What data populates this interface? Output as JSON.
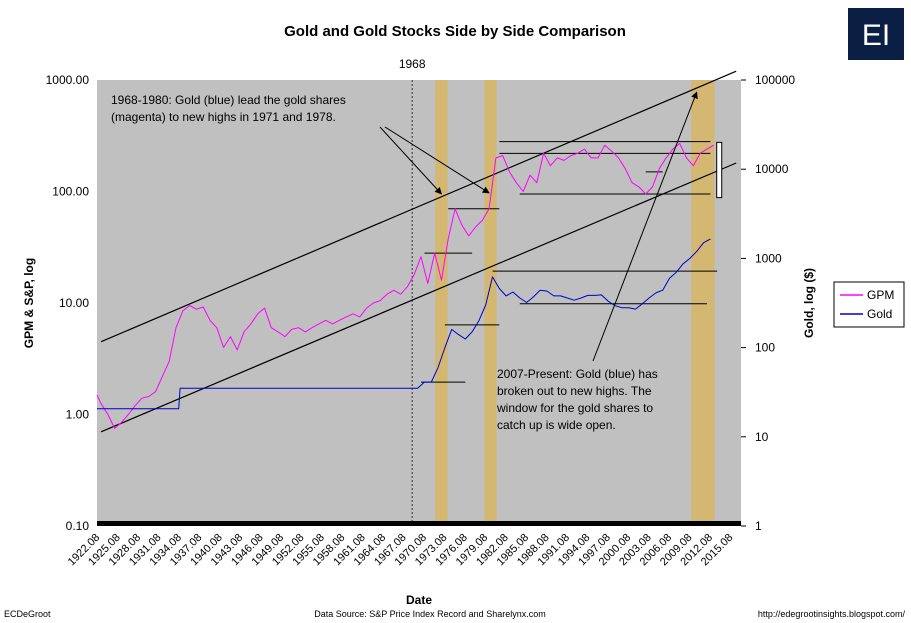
{
  "chart_data": {
    "type": "line",
    "title": "Gold and Gold Stocks Side by Side Comparison",
    "xlabel": "Date",
    "ylabel_left": "GPM & S&P, log",
    "ylabel_right": "Gold, log ($)",
    "y_left_scale": "log",
    "y_right_scale": "log",
    "ylim_left": [
      0.1,
      1000
    ],
    "ylim_right": [
      1,
      100000
    ],
    "xlim": [
      1921.9,
      2016.5
    ],
    "y_left_ticks": [
      "0.10",
      "1.00",
      "10.00",
      "100.00",
      "1000.00"
    ],
    "y_right_ticks": [
      "1",
      "10",
      "100",
      "1000",
      "10000",
      "100000"
    ],
    "x_ticks": [
      "1922.08",
      "1925.08",
      "1928.08",
      "1931.08",
      "1934.08",
      "1937.08",
      "1940.08",
      "1943.08",
      "1946.08",
      "1949.08",
      "1952.08",
      "1955.08",
      "1958.08",
      "1961.08",
      "1964.08",
      "1967.08",
      "1970.08",
      "1973.08",
      "1976.08",
      "1979.08",
      "1982.08",
      "1985.08",
      "1988.08",
      "1991.08",
      "1994.08",
      "1997.08",
      "2000.08",
      "2003.08",
      "2006.08",
      "2009.08",
      "2012.08",
      "2015.08"
    ],
    "grid": false,
    "legend_position": "right",
    "legend": [
      {
        "name": "GPM",
        "color": "#ff00ff"
      },
      {
        "name": "Gold",
        "color": "#0000cc"
      }
    ],
    "marker_line": {
      "x": 1968.2,
      "label": "1968"
    },
    "highlight_bands": [
      [
        1971.6,
        1973.4
      ],
      [
        1978.8,
        1980.6
      ],
      [
        2009.2,
        2012.6
      ]
    ],
    "series": [
      {
        "name": "GPM",
        "axis": "left",
        "color": "#ff00ff",
        "x": [
          1921.9,
          1922.5,
          1923.5,
          1924.5,
          1925.5,
          1926.5,
          1927.5,
          1928.5,
          1929.5,
          1930.5,
          1931.5,
          1932.5,
          1933.5,
          1934.5,
          1935.5,
          1936.5,
          1937.5,
          1938.5,
          1939.5,
          1940.5,
          1941.5,
          1942.5,
          1943.5,
          1944.5,
          1945.5,
          1946.5,
          1947.5,
          1948.5,
          1949.5,
          1950.5,
          1951.5,
          1952.5,
          1953.5,
          1954.5,
          1955.5,
          1956.5,
          1957.5,
          1958.5,
          1959.5,
          1960.5,
          1961.5,
          1962.5,
          1963.5,
          1964.5,
          1965.5,
          1966.5,
          1967.5,
          1968.5,
          1969.5,
          1970.5,
          1971.5,
          1972.5,
          1973.5,
          1974.5,
          1975.5,
          1976.5,
          1977.5,
          1978.5,
          1979.5,
          1980.5,
          1981.5,
          1982.5,
          1983.5,
          1984.5,
          1985.5,
          1986.5,
          1987.5,
          1988.5,
          1989.5,
          1990.5,
          1991.5,
          1992.5,
          1993.5,
          1994.5,
          1995.5,
          1996.5,
          1997.5,
          1998.5,
          1999.5,
          2000.5,
          2001.5,
          2002.5,
          2003.5,
          2004.5,
          2005.5,
          2006.5,
          2007.5,
          2008.5,
          2009.5,
          2010.5,
          2011.5,
          2012.5
        ],
        "values": [
          1.5,
          1.25,
          1.0,
          0.75,
          0.85,
          1.0,
          1.2,
          1.4,
          1.45,
          1.6,
          2.2,
          3.0,
          6.0,
          8.5,
          9.5,
          8.8,
          9.2,
          7.0,
          6.0,
          4.0,
          5.0,
          3.8,
          5.5,
          6.5,
          8.0,
          9.0,
          6.0,
          5.5,
          5.0,
          5.8,
          6.0,
          5.5,
          6.0,
          6.5,
          7.0,
          6.5,
          7.0,
          7.5,
          8.0,
          7.5,
          9.0,
          10.0,
          10.5,
          12.0,
          13.0,
          12.0,
          14.0,
          18.0,
          26.0,
          15.0,
          28.0,
          16.0,
          38.0,
          70.0,
          50.0,
          40.0,
          48.0,
          55.0,
          70.0,
          200.0,
          210.0,
          150.0,
          120.0,
          100.0,
          140.0,
          120.0,
          220.0,
          170.0,
          200.0,
          190.0,
          210.0,
          220.0,
          240.0,
          200.0,
          200.0,
          260.0,
          230.0,
          200.0,
          160.0,
          120.0,
          110.0,
          95.0,
          110.0,
          160.0,
          200.0,
          240.0,
          270.0,
          200.0,
          170.0,
          220.0,
          240.0,
          260.0
        ]
      },
      {
        "name": "Gold",
        "axis": "right",
        "color": "#0000cc",
        "x": [
          1921.9,
          1933.9,
          1934.1,
          1969.0,
          1970.0,
          1971.0,
          1972.0,
          1973.0,
          1974.0,
          1975.0,
          1976.0,
          1977.0,
          1978.0,
          1979.0,
          1980.0,
          1981.0,
          1982.0,
          1983.0,
          1984.0,
          1985.0,
          1986.0,
          1987.0,
          1988.0,
          1989.0,
          1990.0,
          1991.0,
          1992.0,
          1993.0,
          1994.0,
          1995.0,
          1996.0,
          1997.0,
          1998.0,
          1999.0,
          2000.0,
          2001.0,
          2002.0,
          2003.0,
          2004.0,
          2005.0,
          2006.0,
          2007.0,
          2008.0,
          2009.0,
          2010.0,
          2011.0,
          2012.0
        ],
        "values": [
          20.67,
          20.67,
          35.0,
          35.0,
          41.0,
          41.0,
          60.0,
          100.0,
          160.0,
          140.0,
          125.0,
          150.0,
          200.0,
          300.0,
          620.0,
          460.0,
          380.0,
          420.0,
          360.0,
          320.0,
          370.0,
          440.0,
          430.0,
          380.0,
          380.0,
          360.0,
          340.0,
          360.0,
          385.0,
          385.0,
          390.0,
          330.0,
          295.0,
          280.0,
          280.0,
          270.0,
          310.0,
          360.0,
          410.0,
          440.0,
          600.0,
          700.0,
          870.0,
          1000.0,
          1200.0,
          1500.0,
          1650.0
        ]
      },
      {
        "name": "",
        "axis": "left",
        "color": "#000000",
        "x": [
          1922.5,
          2015.8
        ],
        "values": [
          4.5,
          1200.0
        ]
      },
      {
        "name": "",
        "axis": "left",
        "color": "#000000",
        "x": [
          1922.5,
          2015.8
        ],
        "values": [
          0.7,
          180.0
        ]
      }
    ],
    "level_lines": [
      {
        "axis": "left",
        "x": [
          1970.0,
          1977.0
        ],
        "y": 28
      },
      {
        "axis": "left",
        "x": [
          1973.5,
          1981.0
        ],
        "y": 70
      },
      {
        "axis": "left",
        "x": [
          1981.0,
          2012.0
        ],
        "y": 280
      },
      {
        "axis": "left",
        "x": [
          1981.0,
          2012.0
        ],
        "y": 220
      },
      {
        "axis": "left",
        "x": [
          2002.5,
          2005.0
        ],
        "y": 150
      },
      {
        "axis": "left",
        "x": [
          1984.0,
          2012.0
        ],
        "y": 95
      },
      {
        "axis": "right",
        "x": [
          1969.5,
          1976.0
        ],
        "y": 41
      },
      {
        "axis": "right",
        "x": [
          1973.0,
          1981.0
        ],
        "y": 180
      },
      {
        "axis": "right",
        "x": [
          1980.0,
          2013.0
        ],
        "y": 720
      },
      {
        "axis": "right",
        "x": [
          1984.0,
          2011.5
        ],
        "y": 310
      }
    ],
    "range_bracket": {
      "axis": "right",
      "x": 2013.3,
      "y": [
        4800,
        20000
      ]
    },
    "annotations": [
      {
        "lines": [
          "1968-1980:  Gold (blue) lead the gold shares",
          "(magenta) to new highs in 1971 and 1978."
        ],
        "arrows": [
          {
            "to_x": 1972.5,
            "to_y": 95
          },
          {
            "to_x": 1979.5,
            "to_y": 97
          }
        ]
      },
      {
        "lines": [
          "2007-Present:  Gold (blue) has",
          "broken out to new highs.  The",
          "window for the gold shares to",
          "catch up is wide open."
        ],
        "arrows": [
          {
            "to_x": 2010.0,
            "to_y": 780
          }
        ]
      }
    ]
  },
  "footer": {
    "left": "ECDeGroot",
    "center": "Data Source: S&P Price Index Record and Sharelynx.com",
    "right": "http://edegrootinsights.blogspot.com/"
  },
  "logo": {
    "text": "EI",
    "background": "#0b1f45"
  },
  "colors": {
    "plot_bg": "#c0c0c0",
    "band": "#d4b871",
    "axis_bar": "#000000"
  }
}
